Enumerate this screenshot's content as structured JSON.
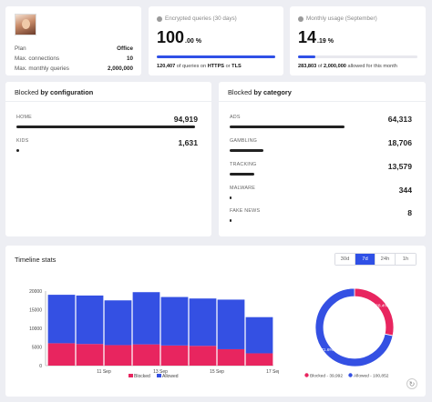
{
  "account": {
    "rows": [
      {
        "label": "Plan",
        "value": "Office"
      },
      {
        "label": "Max. connections",
        "value": "10"
      },
      {
        "label": "Max. monthly queries",
        "value": "2,000,000"
      }
    ]
  },
  "encrypted": {
    "title": "Encrypted queries (30 days)",
    "value": "100",
    "suffix": ".00 %",
    "fraction": 1.0,
    "count": "120,407",
    "text1": "of queries on",
    "https": "HTTPS",
    "text2": "or",
    "tls": "TLS"
  },
  "usage": {
    "title": "Monthly usage (September)",
    "value": "14",
    "suffix": ".19 %",
    "fraction": 0.1419,
    "count": "283,803",
    "text1": "of",
    "limit": "2,000,000",
    "text2": "allowed for this month"
  },
  "by_configuration": {
    "title_prefix": "Blocked",
    "title_bold": "by configuration",
    "items": [
      {
        "label": "HOME",
        "value": "94,919",
        "fraction": 0.983
      },
      {
        "label": "KIDS",
        "value": "1,631",
        "fraction": 0.017
      }
    ]
  },
  "by_category": {
    "title_prefix": "Blocked",
    "title_bold": "by category",
    "items": [
      {
        "label": "ADS",
        "value": "64,313",
        "fraction": 0.63
      },
      {
        "label": "GAMBLING",
        "value": "18,706",
        "fraction": 0.184
      },
      {
        "label": "TRACKING",
        "value": "13,579",
        "fraction": 0.133
      },
      {
        "label": "MALWARE",
        "value": "344",
        "fraction": 0.0034
      },
      {
        "label": "FAKE NEWS",
        "value": "8",
        "fraction": 0.0001
      }
    ]
  },
  "timeline": {
    "title": "Timeline stats",
    "tabs": [
      "30d",
      "7d",
      "24h",
      "1h"
    ],
    "active_tab": "7d",
    "refresh_icon": "refresh-icon"
  },
  "chart_data": [
    {
      "type": "bar",
      "stacked": true,
      "categories": [
        "",
        "11 Sep",
        "",
        "13 Sep",
        "",
        "15 Sep",
        "",
        "17 Sep"
      ],
      "series": [
        {
          "name": "Blocked",
          "color": "#e8255f",
          "values": [
            6000,
            5800,
            5500,
            5700,
            5400,
            5300,
            4400,
            3300
          ]
        },
        {
          "name": "Allowed",
          "color": "#3450e3",
          "values": [
            13000,
            13000,
            12000,
            14000,
            13000,
            12700,
            13300,
            9700
          ]
        }
      ],
      "ylim": [
        0,
        20000
      ],
      "yticks": [
        0,
        5000,
        10000,
        15000,
        20000
      ],
      "grid": false,
      "legend": "bottom"
    },
    {
      "type": "pie",
      "donut": true,
      "slices": [
        {
          "name": "Blocked",
          "value": 39992,
          "label": "28.4%",
          "color": "#e8255f",
          "legend": "Blocked - 39,992"
        },
        {
          "name": "Allowed",
          "value": 100852,
          "label": "71.6%",
          "color": "#3450e3",
          "legend": "Allowed - 100,852"
        }
      ],
      "legend": "bottom"
    }
  ]
}
